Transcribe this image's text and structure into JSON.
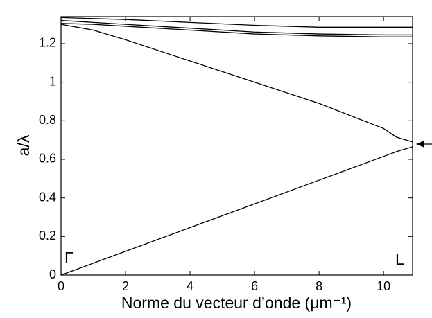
{
  "chart_data": {
    "type": "line",
    "xlabel": "Norme du vecteur d’onde (μm⁻¹)",
    "ylabel": "a/λ",
    "annotations": [
      "Γ",
      "L"
    ],
    "x": [
      0,
      1,
      2,
      4,
      6,
      8,
      10,
      10.4,
      10.9
    ],
    "series": [
      {
        "color": "#000000",
        "values": [
          0,
          0.0615,
          0.123,
          0.246,
          0.369,
          0.492,
          0.615,
          0.64,
          0.665
        ]
      },
      {
        "color": "#000000",
        "values": [
          1.3,
          1.27,
          1.22,
          1.11,
          1.0,
          0.89,
          0.76,
          0.715,
          0.69
        ]
      },
      {
        "color": "#000000",
        "values": [
          1.335,
          1.33,
          1.325,
          1.31,
          1.295,
          1.285,
          1.285,
          1.285,
          1.285
        ]
      },
      {
        "color": "#000000",
        "values": [
          1.32,
          1.31,
          1.3,
          1.28,
          1.26,
          1.25,
          1.245,
          1.245,
          1.245
        ]
      },
      {
        "color": "#000000",
        "values": [
          1.305,
          1.3,
          1.29,
          1.27,
          1.25,
          1.24,
          1.235,
          1.235,
          1.235
        ]
      }
    ],
    "xlim": [
      0,
      10.9
    ],
    "ylim": [
      0,
      1.34
    ],
    "xticks": [
      0,
      2,
      4,
      6,
      8,
      10
    ],
    "yticks": [
      0,
      0.2,
      0.4,
      0.6,
      0.8,
      1,
      1.2
    ],
    "grid": false
  }
}
